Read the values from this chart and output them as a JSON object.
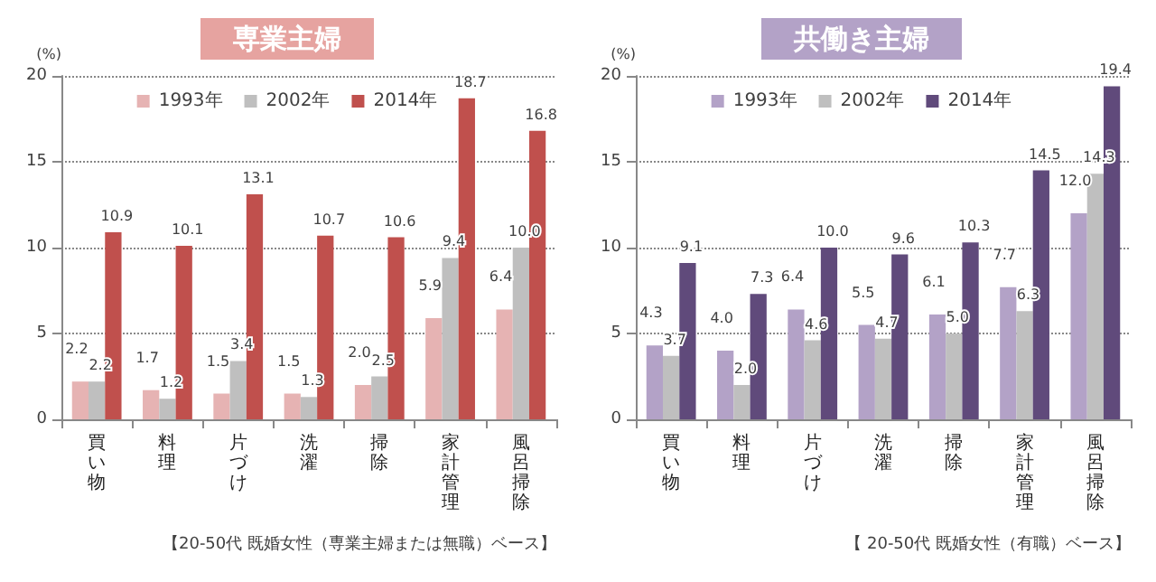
{
  "chart_data": [
    {
      "type": "bar",
      "title": "専業主婦",
      "ylabel": "(%)",
      "categories": [
        "買い物",
        "料理",
        "片づけ",
        "洗濯",
        "掃除",
        "家計管理",
        "風呂掃除"
      ],
      "series": [
        {
          "name": "1993年",
          "color": "#e6b3b3",
          "values": [
            2.2,
            1.7,
            1.5,
            1.5,
            2.0,
            5.9,
            6.4
          ],
          "value_labels": [
            "2.2",
            "1.7",
            "1.5",
            "1.5",
            "2.0",
            "5.9",
            "6.4"
          ]
        },
        {
          "name": "2002年",
          "color": "#bfbfbf",
          "values": [
            2.2,
            1.2,
            3.4,
            1.3,
            2.5,
            9.4,
            10.0
          ],
          "value_labels": [
            "2.2",
            "1.2",
            "3.4",
            "1.3",
            "2.5",
            "9.4",
            "10.0"
          ]
        },
        {
          "name": "2014年",
          "color": "#c0504d",
          "values": [
            10.9,
            10.1,
            13.1,
            10.7,
            10.6,
            18.7,
            16.8
          ],
          "value_labels": [
            "10.9",
            "10.1",
            "13.1",
            "10.7",
            "10.6",
            "18.7",
            "16.8"
          ]
        }
      ],
      "ylim": [
        0,
        20
      ],
      "yticks": [
        0,
        5,
        10,
        15,
        20
      ],
      "grid": "y",
      "legend": "top",
      "annotations": [
        "【20-50代 既婚女性（専業主婦または無職）ベース】"
      ]
    },
    {
      "type": "bar",
      "title": "共働き主婦",
      "ylabel": "(%)",
      "categories": [
        "買い物",
        "料理",
        "片づけ",
        "洗濯",
        "掃除",
        "家計管理",
        "風呂掃除"
      ],
      "series": [
        {
          "name": "1993年",
          "color": "#b3a2c7",
          "values": [
            4.3,
            4.0,
            6.4,
            5.5,
            6.1,
            7.7,
            12.0
          ],
          "value_labels": [
            "4.3",
            "4.0",
            "6.4",
            "5.5",
            "6.1",
            "7.7",
            "12.0"
          ]
        },
        {
          "name": "2002年",
          "color": "#bfbfbf",
          "values": [
            3.7,
            2.0,
            4.6,
            4.7,
            5.0,
            6.3,
            14.3
          ],
          "value_labels": [
            "3.7",
            "2.0",
            "4.6",
            "4.7",
            "5.0",
            "6.3",
            "14.3"
          ]
        },
        {
          "name": "2014年",
          "color": "#604a7b",
          "values": [
            9.1,
            7.3,
            10.0,
            9.6,
            10.3,
            14.5,
            19.4
          ],
          "value_labels": [
            "9.1",
            "7.3",
            "10.0",
            "9.6",
            "10.3",
            "14.5",
            "19.4"
          ]
        }
      ],
      "ylim": [
        0,
        20
      ],
      "yticks": [
        0,
        5,
        10,
        15,
        20
      ],
      "grid": "y",
      "legend": "top",
      "annotations": [
        "【 20-50代 既婚女性（有職）ベース】"
      ]
    }
  ]
}
